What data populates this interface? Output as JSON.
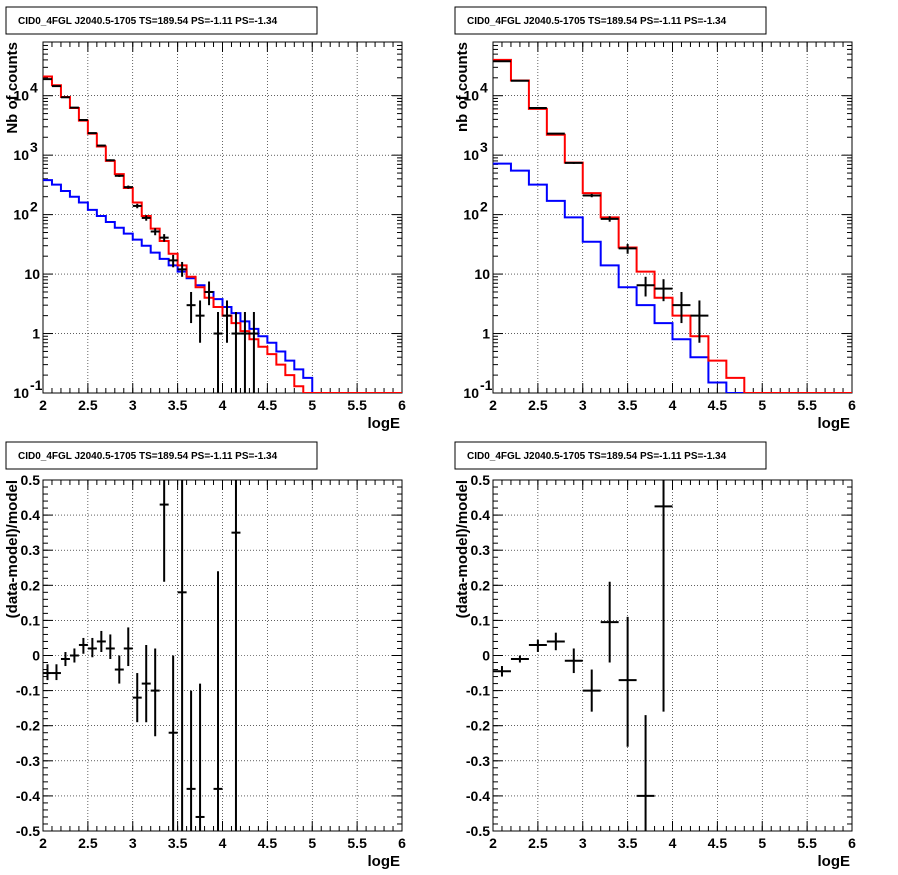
{
  "chart_data": [
    {
      "type": "histogram",
      "title": "CID0_4FGL J2040.5-1705 TS=189.54 PS=-1.11 PS=-1.34",
      "xlabel": "logE",
      "ylabel": "Nb of counts",
      "xlim": [
        2,
        6
      ],
      "ylim": [
        0.1,
        80000
      ],
      "yscale": "log",
      "grid": true,
      "x_ticks": [
        "2",
        "2.5",
        "3",
        "3.5",
        "4",
        "4.5",
        "5",
        "5.5",
        "6"
      ],
      "y_ticks": [
        {
          "v": 0.1,
          "label": "10^-1"
        },
        {
          "v": 1,
          "label": "1"
        },
        {
          "v": 10,
          "label": "10"
        },
        {
          "v": 100,
          "label": "10^2"
        },
        {
          "v": 1000,
          "label": "10^3"
        },
        {
          "v": 10000,
          "label": "10^4"
        }
      ],
      "series": [
        {
          "color": "#0000ff",
          "bin_width": 0.1,
          "edges_start": 2.0,
          "values": [
            380,
            320,
            250,
            200,
            160,
            120,
            95,
            75,
            60,
            48,
            38,
            30,
            23,
            18,
            14,
            11,
            8.5,
            6.5,
            5,
            3.8,
            2.8,
            2.2,
            1.6,
            1.2,
            0.9,
            0.7,
            0.5,
            0.35,
            0.25,
            0.18,
            0.1,
            0.1,
            0.1,
            0.1,
            0.1,
            0.1,
            0.1,
            0.1,
            0.1,
            0.1
          ]
        },
        {
          "color": "#ff0000",
          "bin_width": 0.1,
          "edges_start": 2.0,
          "values": [
            21000,
            15000,
            9500,
            6200,
            3800,
            2300,
            1400,
            800,
            480,
            280,
            160,
            95,
            58,
            36,
            22,
            14,
            9,
            6,
            4,
            2.8,
            2,
            1.5,
            1.1,
            0.8,
            0.6,
            0.45,
            0.3,
            0.2,
            0.13,
            0.1,
            0.1,
            0.1,
            0.1,
            0.1,
            0.1,
            0.1,
            0.1,
            0.1,
            0.1,
            0.1
          ]
        }
      ],
      "points": [
        {
          "x": 2.05,
          "y": 19000,
          "lo": 18800,
          "hi": 19200
        },
        {
          "x": 2.15,
          "y": 14500,
          "lo": 14300,
          "hi": 14700
        },
        {
          "x": 2.25,
          "y": 9400,
          "lo": 9250,
          "hi": 9550
        },
        {
          "x": 2.35,
          "y": 6300,
          "lo": 6200,
          "hi": 6400
        },
        {
          "x": 2.45,
          "y": 3900,
          "lo": 3840,
          "hi": 3960
        },
        {
          "x": 2.55,
          "y": 2350,
          "lo": 2300,
          "hi": 2400
        },
        {
          "x": 2.65,
          "y": 1450,
          "lo": 1410,
          "hi": 1490
        },
        {
          "x": 2.75,
          "y": 820,
          "lo": 790,
          "hi": 850
        },
        {
          "x": 2.85,
          "y": 450,
          "lo": 430,
          "hi": 470
        },
        {
          "x": 2.95,
          "y": 290,
          "lo": 272,
          "hi": 308
        },
        {
          "x": 3.05,
          "y": 140,
          "lo": 128,
          "hi": 152
        },
        {
          "x": 3.15,
          "y": 88,
          "lo": 79,
          "hi": 97
        },
        {
          "x": 3.25,
          "y": 52,
          "lo": 45,
          "hi": 59
        },
        {
          "x": 3.35,
          "y": 41,
          "lo": 35,
          "hi": 47
        },
        {
          "x": 3.45,
          "y": 17,
          "lo": 13,
          "hi": 21
        },
        {
          "x": 3.55,
          "y": 12,
          "lo": 9,
          "hi": 16
        },
        {
          "x": 3.65,
          "y": 3,
          "lo": 1.5,
          "hi": 5
        },
        {
          "x": 3.75,
          "y": 2,
          "lo": 0.7,
          "hi": 3.6
        },
        {
          "x": 3.85,
          "y": 5,
          "lo": 3,
          "hi": 7.5
        },
        {
          "x": 3.95,
          "y": 1,
          "lo": 0.1,
          "hi": 2.3
        },
        {
          "x": 4.05,
          "y": 2,
          "lo": 0.7,
          "hi": 3.6
        },
        {
          "x": 4.15,
          "y": 1,
          "lo": 0.1,
          "hi": 2.3
        },
        {
          "x": 4.25,
          "y": 1,
          "lo": 0.1,
          "hi": 2.3
        },
        {
          "x": 4.35,
          "y": 1,
          "lo": 0.1,
          "hi": 2.3
        }
      ]
    },
    {
      "type": "histogram",
      "title": "CID0_4FGL J2040.5-1705 TS=189.54 PS=-1.11 PS=-1.34",
      "xlabel": "logE",
      "ylabel": "nb of counts",
      "xlim": [
        2,
        6
      ],
      "ylim": [
        0.1,
        80000
      ],
      "yscale": "log",
      "grid": true,
      "x_ticks": [
        "2",
        "2.5",
        "3",
        "3.5",
        "4",
        "4.5",
        "5",
        "5.5",
        "6"
      ],
      "y_ticks": [
        {
          "v": 0.1,
          "label": "10^-1"
        },
        {
          "v": 1,
          "label": "1"
        },
        {
          "v": 10,
          "label": "10"
        },
        {
          "v": 100,
          "label": "10^2"
        },
        {
          "v": 1000,
          "label": "10^3"
        },
        {
          "v": 10000,
          "label": "10^4"
        }
      ],
      "series": [
        {
          "color": "#0000ff",
          "bin_width": 0.2,
          "edges_start": 2.0,
          "values": [
            720,
            550,
            320,
            170,
            90,
            35,
            14,
            6,
            3,
            1.5,
            0.8,
            0.4,
            0.15,
            0.1,
            0.1,
            0.1,
            0.1,
            0.1,
            0.1,
            0.1
          ]
        },
        {
          "color": "#ff0000",
          "bin_width": 0.2,
          "edges_start": 2.0,
          "values": [
            40000,
            18000,
            6000,
            2200,
            750,
            230,
            90,
            28,
            11,
            4,
            2,
            0.9,
            0.35,
            0.18,
            0.1,
            0.1,
            0.1,
            0.1,
            0.1,
            0.1
          ]
        }
      ],
      "points": [
        {
          "x": 2.1,
          "y": 38000,
          "lo": 37800,
          "hi": 38200
        },
        {
          "x": 2.3,
          "y": 17800,
          "lo": 17600,
          "hi": 18000
        },
        {
          "x": 2.5,
          "y": 6200,
          "lo": 6100,
          "hi": 6300
        },
        {
          "x": 2.7,
          "y": 2300,
          "lo": 2250,
          "hi": 2350
        },
        {
          "x": 2.9,
          "y": 740,
          "lo": 715,
          "hi": 765
        },
        {
          "x": 3.1,
          "y": 210,
          "lo": 196,
          "hi": 224
        },
        {
          "x": 3.3,
          "y": 85,
          "lo": 76,
          "hi": 94
        },
        {
          "x": 3.5,
          "y": 27,
          "lo": 22,
          "hi": 32
        },
        {
          "x": 3.7,
          "y": 6.5,
          "lo": 4.2,
          "hi": 9
        },
        {
          "x": 3.9,
          "y": 5.7,
          "lo": 3.5,
          "hi": 8.2
        },
        {
          "x": 4.1,
          "y": 3,
          "lo": 1.5,
          "hi": 5
        },
        {
          "x": 4.3,
          "y": 2,
          "lo": 0.7,
          "hi": 3.6
        }
      ]
    },
    {
      "type": "scatter",
      "title": "CID0_4FGL J2040.5-1705 TS=189.54 PS=-1.11 PS=-1.34",
      "xlabel": "logE",
      "ylabel": "(data-model)/model",
      "xlim": [
        2,
        6
      ],
      "ylim": [
        -0.5,
        0.5
      ],
      "yscale": "linear",
      "grid": true,
      "x_ticks": [
        "2",
        "2.5",
        "3",
        "3.5",
        "4",
        "4.5",
        "5",
        "5.5",
        "6"
      ],
      "y_ticks": [
        {
          "v": -0.5,
          "label": "-0.5"
        },
        {
          "v": -0.4,
          "label": "-0.4"
        },
        {
          "v": -0.3,
          "label": "-0.3"
        },
        {
          "v": -0.2,
          "label": "-0.2"
        },
        {
          "v": -0.1,
          "label": "-0.1"
        },
        {
          "v": 0,
          "label": "0"
        },
        {
          "v": 0.1,
          "label": "0.1"
        },
        {
          "v": 0.2,
          "label": "0.2"
        },
        {
          "v": 0.3,
          "label": "0.3"
        },
        {
          "v": 0.4,
          "label": "0.4"
        },
        {
          "v": 0.5,
          "label": "0.5"
        }
      ],
      "bin_width": 0.1,
      "points": [
        {
          "x": 2.05,
          "y": -0.05,
          "lo": -0.07,
          "hi": -0.025
        },
        {
          "x": 2.15,
          "y": -0.05,
          "lo": -0.07,
          "hi": -0.025
        },
        {
          "x": 2.25,
          "y": -0.01,
          "lo": -0.03,
          "hi": 0.01
        },
        {
          "x": 2.35,
          "y": 0.0,
          "lo": -0.02,
          "hi": 0.02
        },
        {
          "x": 2.45,
          "y": 0.03,
          "lo": 0.005,
          "hi": 0.05
        },
        {
          "x": 2.55,
          "y": 0.02,
          "lo": -0.005,
          "hi": 0.05
        },
        {
          "x": 2.65,
          "y": 0.04,
          "lo": 0.01,
          "hi": 0.07
        },
        {
          "x": 2.75,
          "y": 0.02,
          "lo": -0.01,
          "hi": 0.06
        },
        {
          "x": 2.85,
          "y": -0.04,
          "lo": -0.08,
          "hi": 0.0
        },
        {
          "x": 2.95,
          "y": 0.02,
          "lo": -0.03,
          "hi": 0.08
        },
        {
          "x": 3.05,
          "y": -0.12,
          "lo": -0.19,
          "hi": -0.05
        },
        {
          "x": 3.15,
          "y": -0.08,
          "lo": -0.19,
          "hi": 0.03
        },
        {
          "x": 3.25,
          "y": -0.1,
          "lo": -0.23,
          "hi": 0.02
        },
        {
          "x": 3.35,
          "y": 0.43,
          "lo": 0.21,
          "hi": 0.5
        },
        {
          "x": 3.45,
          "y": -0.22,
          "lo": -0.5,
          "hi": 0.0
        },
        {
          "x": 3.55,
          "y": 0.18,
          "lo": -0.5,
          "hi": 0.5
        },
        {
          "x": 3.65,
          "y": -0.38,
          "lo": -0.5,
          "hi": -0.1
        },
        {
          "x": 3.75,
          "y": -0.46,
          "lo": -0.5,
          "hi": -0.08
        },
        {
          "x": 3.95,
          "y": -0.38,
          "lo": -0.5,
          "hi": 0.24
        },
        {
          "x": 4.15,
          "y": 0.35,
          "lo": -0.5,
          "hi": 0.5
        }
      ]
    },
    {
      "type": "scatter",
      "title": "CID0_4FGL J2040.5-1705 TS=189.54 PS=-1.11 PS=-1.34",
      "xlabel": "logE",
      "ylabel": "(data-model)/model",
      "xlim": [
        2,
        6
      ],
      "ylim": [
        -0.5,
        0.5
      ],
      "yscale": "linear",
      "grid": true,
      "x_ticks": [
        "2",
        "2.5",
        "3",
        "3.5",
        "4",
        "4.5",
        "5",
        "5.5",
        "6"
      ],
      "y_ticks": [
        {
          "v": -0.5,
          "label": "-0.5"
        },
        {
          "v": -0.4,
          "label": "-0.4"
        },
        {
          "v": -0.3,
          "label": "-0.3"
        },
        {
          "v": -0.2,
          "label": "-0.2"
        },
        {
          "v": -0.1,
          "label": "-0.1"
        },
        {
          "v": 0,
          "label": "0"
        },
        {
          "v": 0.1,
          "label": "0.1"
        },
        {
          "v": 0.2,
          "label": "0.2"
        },
        {
          "v": 0.3,
          "label": "0.3"
        },
        {
          "v": 0.4,
          "label": "0.4"
        },
        {
          "v": 0.5,
          "label": "0.5"
        }
      ],
      "bin_width": 0.2,
      "points": [
        {
          "x": 2.1,
          "y": -0.045,
          "lo": -0.06,
          "hi": -0.03
        },
        {
          "x": 2.3,
          "y": -0.01,
          "lo": -0.02,
          "hi": 0.0
        },
        {
          "x": 2.5,
          "y": 0.03,
          "lo": 0.01,
          "hi": 0.045
        },
        {
          "x": 2.7,
          "y": 0.04,
          "lo": 0.015,
          "hi": 0.065
        },
        {
          "x": 2.9,
          "y": -0.015,
          "lo": -0.05,
          "hi": 0.02
        },
        {
          "x": 3.1,
          "y": -0.1,
          "lo": -0.16,
          "hi": -0.04
        },
        {
          "x": 3.3,
          "y": 0.095,
          "lo": -0.02,
          "hi": 0.21
        },
        {
          "x": 3.5,
          "y": -0.07,
          "lo": -0.26,
          "hi": 0.11
        },
        {
          "x": 3.7,
          "y": -0.4,
          "lo": -0.5,
          "hi": -0.17
        },
        {
          "x": 3.9,
          "y": 0.425,
          "lo": -0.16,
          "hi": 0.5
        }
      ]
    }
  ]
}
